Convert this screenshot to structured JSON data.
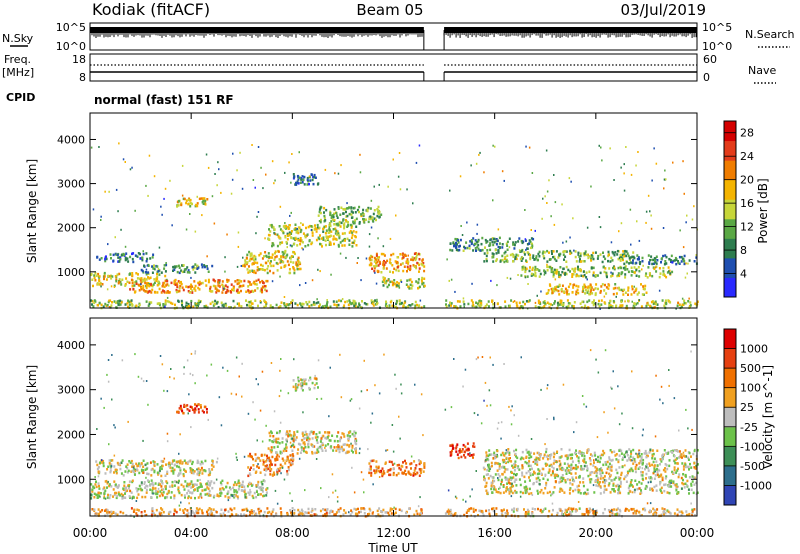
{
  "header": {
    "station": "Kodiak (fitACF)",
    "beam": "Beam 05",
    "date": "03/Jul/2019"
  },
  "labels": {
    "nsky": "N.Sky",
    "nsearch": "N.Search",
    "freq": "Freq.",
    "freq_unit": "[MHz]",
    "nave": "Nave",
    "cpid": "CPID",
    "cpid_value": "normal (fast) 151 RF"
  },
  "noise_axis": {
    "left_ticks": [
      "10^5",
      "10^0"
    ],
    "right_ticks": [
      "10^5",
      "10^0"
    ]
  },
  "freq_axis": {
    "left_ticks": [
      "18",
      "8"
    ],
    "right_ticks": [
      "60",
      "0"
    ]
  },
  "chart_data": [
    {
      "type": "heatmap",
      "panel": "power",
      "xlabel": "Time UT",
      "ylabel": "Slant Range [km]",
      "x_ticks": [
        "00:00",
        "04:00",
        "08:00",
        "12:00",
        "16:00",
        "20:00",
        "00:00"
      ],
      "xlim_hours": [
        0,
        24
      ],
      "y_ticks": [
        1000,
        2000,
        3000,
        4000
      ],
      "ylim": [
        180,
        4600
      ],
      "data_gap_hours": [
        13.2,
        14.0
      ],
      "colorbar": {
        "label": "Power [dB]",
        "ticks": [
          4,
          8,
          12,
          16,
          20,
          24,
          28
        ],
        "range": [
          0,
          30
        ],
        "colors": [
          "#2a2aff",
          "#1f4fb0",
          "#2e7d4f",
          "#5aa845",
          "#c7d63a",
          "#f4b400",
          "#f07d00",
          "#e33b1a",
          "#d40000"
        ]
      },
      "regions": [
        {
          "t": [
            0.0,
            13.2
          ],
          "r": [
            200,
            380
          ],
          "level": 0.45
        },
        {
          "t": [
            14.0,
            24.0
          ],
          "r": [
            200,
            380
          ],
          "level": 0.5
        },
        {
          "t": [
            0.0,
            3.0
          ],
          "r": [
            700,
            1000
          ],
          "level": 0.55
        },
        {
          "t": [
            1.5,
            7.0
          ],
          "r": [
            550,
            850
          ],
          "level": 0.7
        },
        {
          "t": [
            0.2,
            2.5
          ],
          "r": [
            1250,
            1450
          ],
          "level": 0.25
        },
        {
          "t": [
            2.0,
            4.8
          ],
          "r": [
            1000,
            1200
          ],
          "level": 0.3
        },
        {
          "t": [
            6.0,
            8.3
          ],
          "r": [
            1000,
            1500
          ],
          "level": 0.55
        },
        {
          "t": [
            7.0,
            10.5
          ],
          "r": [
            1600,
            2100
          ],
          "level": 0.5
        },
        {
          "t": [
            9.0,
            11.5
          ],
          "r": [
            2100,
            2500
          ],
          "level": 0.4
        },
        {
          "t": [
            3.4,
            4.6
          ],
          "r": [
            2500,
            2700
          ],
          "level": 0.55
        },
        {
          "t": [
            8.0,
            9.0
          ],
          "r": [
            3000,
            3250
          ],
          "level": 0.2
        },
        {
          "t": [
            11.0,
            13.2
          ],
          "r": [
            1000,
            1450
          ],
          "level": 0.65
        },
        {
          "t": [
            11.5,
            13.2
          ],
          "r": [
            650,
            900
          ],
          "level": 0.5
        },
        {
          "t": [
            14.2,
            17.5
          ],
          "r": [
            1500,
            1800
          ],
          "level": 0.3
        },
        {
          "t": [
            15.5,
            21.5
          ],
          "r": [
            1250,
            1500
          ],
          "level": 0.4
        },
        {
          "t": [
            17.0,
            23.0
          ],
          "r": [
            900,
            1150
          ],
          "level": 0.45
        },
        {
          "t": [
            18.0,
            22.0
          ],
          "r": [
            500,
            750
          ],
          "level": 0.6
        },
        {
          "t": [
            21.0,
            24.0
          ],
          "r": [
            1200,
            1400
          ],
          "level": 0.25
        }
      ]
    },
    {
      "type": "heatmap",
      "panel": "velocity",
      "xlabel": "Time UT",
      "ylabel": "Slant Range [km]",
      "x_ticks": [
        "00:00",
        "04:00",
        "08:00",
        "12:00",
        "16:00",
        "20:00",
        "00:00"
      ],
      "xlim_hours": [
        0,
        24
      ],
      "y_ticks": [
        1000,
        2000,
        3000,
        4000
      ],
      "ylim": [
        180,
        4600
      ],
      "data_gap_hours": [
        13.2,
        14.0
      ],
      "colorbar": {
        "label": "Velocity [m s^-1]",
        "ticks": [
          "1000",
          "500",
          "100",
          "25",
          "-25",
          "-100",
          "-500",
          "-1000"
        ],
        "colors": [
          "#3045b5",
          "#2d6e8c",
          "#3d8f57",
          "#6cc24a",
          "#bdbdbd",
          "#f0a020",
          "#f07000",
          "#e64010",
          "#dd0000"
        ]
      },
      "regions": [
        {
          "t": [
            0.0,
            13.2
          ],
          "r": [
            200,
            380
          ],
          "level": 0.62
        },
        {
          "t": [
            14.0,
            24.0
          ],
          "r": [
            200,
            380
          ],
          "level": 0.6
        },
        {
          "t": [
            0.0,
            7.0
          ],
          "r": [
            600,
            1000
          ],
          "level": 0.5
        },
        {
          "t": [
            0.2,
            5.0
          ],
          "r": [
            1100,
            1450
          ],
          "level": 0.5
        },
        {
          "t": [
            6.2,
            8.0
          ],
          "r": [
            1100,
            1600
          ],
          "level": 0.68
        },
        {
          "t": [
            7.0,
            10.5
          ],
          "r": [
            1600,
            2100
          ],
          "level": 0.52
        },
        {
          "t": [
            3.4,
            4.6
          ],
          "r": [
            2500,
            2700
          ],
          "level": 0.82
        },
        {
          "t": [
            11.0,
            13.2
          ],
          "r": [
            1100,
            1450
          ],
          "level": 0.72
        },
        {
          "t": [
            14.2,
            15.2
          ],
          "r": [
            1500,
            1850
          ],
          "level": 0.85
        },
        {
          "t": [
            15.5,
            24.0
          ],
          "r": [
            700,
            1700
          ],
          "level": 0.5
        },
        {
          "t": [
            8.0,
            9.0
          ],
          "r": [
            3000,
            3300
          ],
          "level": 0.5
        }
      ]
    }
  ]
}
